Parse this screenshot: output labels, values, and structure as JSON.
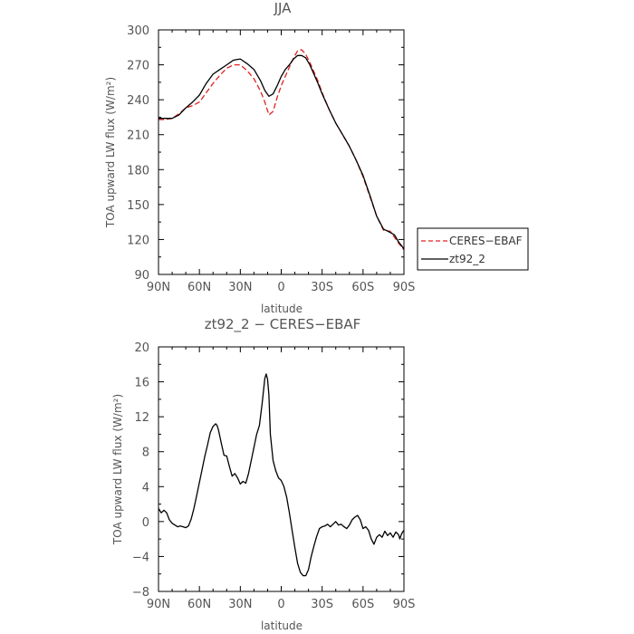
{
  "chart_data": [
    {
      "type": "line",
      "title": "JJA",
      "xlabel": "latitude",
      "ylabel": "TOA upward LW flux (W/m²)",
      "xlim": [
        -90,
        90
      ],
      "ylim": [
        90,
        300
      ],
      "x_ticks": [
        -90,
        -60,
        -30,
        0,
        30,
        60,
        90
      ],
      "x_tick_labels": [
        "90N",
        "60N",
        "30N",
        "0",
        "30S",
        "60S",
        "90S"
      ],
      "y_ticks": [
        90,
        120,
        150,
        180,
        210,
        240,
        270,
        300
      ],
      "y_tick_labels": [
        "90",
        "120",
        "150",
        "180",
        "210",
        "240",
        "270",
        "300"
      ],
      "legend": "right",
      "series": [
        {
          "name": "CERES−EBAF",
          "color": "#e02020",
          "dash": "dashed",
          "x": [
            -90,
            -85,
            -80,
            -75,
            -70,
            -65,
            -60,
            -55,
            -50,
            -45,
            -40,
            -35,
            -30,
            -25,
            -20,
            -15,
            -12,
            -9,
            -6,
            -3,
            0,
            3,
            6,
            9,
            12,
            15,
            18,
            21,
            24,
            27,
            30,
            35,
            40,
            45,
            50,
            55,
            60,
            65,
            70,
            75,
            80,
            83,
            86,
            90
          ],
          "y": [
            223,
            223,
            224,
            228,
            233,
            235,
            238,
            246,
            254,
            261,
            267,
            270,
            270,
            265,
            258,
            247,
            238,
            227,
            230,
            242,
            252,
            260,
            268,
            276,
            282,
            283,
            279,
            272,
            264,
            256,
            246,
            232,
            220,
            210,
            200,
            188,
            174,
            157,
            140,
            128,
            127,
            122,
            117,
            111
          ]
        },
        {
          "name": "zt92_2",
          "color": "#000000",
          "dash": "solid",
          "x": [
            -90,
            -85,
            -80,
            -75,
            -70,
            -65,
            -60,
            -55,
            -50,
            -45,
            -40,
            -35,
            -30,
            -25,
            -20,
            -15,
            -12,
            -9,
            -6,
            -3,
            0,
            3,
            6,
            9,
            12,
            15,
            18,
            21,
            24,
            27,
            30,
            35,
            40,
            45,
            50,
            55,
            60,
            65,
            70,
            75,
            80,
            83,
            86,
            90
          ],
          "y": [
            224,
            224,
            224,
            227,
            233,
            238,
            244,
            254,
            262,
            266,
            270,
            274,
            275,
            271,
            266,
            256,
            248,
            243,
            245,
            252,
            260,
            266,
            270,
            275,
            278,
            278,
            276,
            270,
            262,
            254,
            245,
            232,
            220,
            210,
            200,
            188,
            175,
            158,
            140,
            129,
            126,
            124,
            118,
            112
          ]
        }
      ]
    },
    {
      "type": "line",
      "title": "zt92_2 − CERES−EBAF",
      "xlabel": "latitude",
      "ylabel": "TOA upward LW flux (W/m²)",
      "xlim": [
        -90,
        90
      ],
      "ylim": [
        -8,
        20
      ],
      "x_ticks": [
        -90,
        -60,
        -30,
        0,
        30,
        60,
        90
      ],
      "x_tick_labels": [
        "90N",
        "60N",
        "30N",
        "0",
        "30S",
        "60S",
        "90S"
      ],
      "y_ticks": [
        -8,
        -4,
        0,
        4,
        8,
        12,
        16,
        20
      ],
      "y_tick_labels": [
        "−8",
        "−4",
        "0",
        "4",
        "8",
        "12",
        "16",
        "20"
      ],
      "series": [
        {
          "name": "",
          "color": "#000000",
          "dash": "solid",
          "x": [
            -90,
            -88,
            -86,
            -84,
            -82,
            -80,
            -78,
            -76,
            -74,
            -72,
            -70,
            -68,
            -66,
            -64,
            -62,
            -60,
            -58,
            -56,
            -54,
            -52,
            -50,
            -48,
            -47,
            -46,
            -44,
            -42,
            -40,
            -38,
            -36,
            -34,
            -32,
            -30,
            -28,
            -26,
            -24,
            -22,
            -20,
            -18,
            -16,
            -14,
            -12,
            -11,
            -10,
            -9,
            -8,
            -6,
            -4,
            -2,
            0,
            2,
            4,
            6,
            8,
            10,
            12,
            14,
            16,
            18,
            20,
            22,
            24,
            26,
            28,
            30,
            32,
            34,
            36,
            38,
            40,
            42,
            44,
            46,
            48,
            50,
            52,
            54,
            56,
            58,
            60,
            62,
            64,
            66,
            68,
            70,
            72,
            74,
            76,
            78,
            80,
            82,
            84,
            86,
            87,
            88,
            89,
            90
          ],
          "y": [
            1.5,
            1.0,
            1.3,
            1.0,
            0.2,
            -0.2,
            -0.4,
            -0.6,
            -0.5,
            -0.6,
            -0.7,
            -0.5,
            0.3,
            1.5,
            3.0,
            4.5,
            6.0,
            7.5,
            8.8,
            10.2,
            10.9,
            11.2,
            11.0,
            10.5,
            9.0,
            7.6,
            7.5,
            6.3,
            5.2,
            5.5,
            5.0,
            4.3,
            4.6,
            4.4,
            5.5,
            7.0,
            8.5,
            10.0,
            11.0,
            13.5,
            16.4,
            16.9,
            16.3,
            14.5,
            10.0,
            7.0,
            5.8,
            5.0,
            4.7,
            4.0,
            2.8,
            1.0,
            -1.0,
            -3.0,
            -4.8,
            -5.8,
            -6.2,
            -6.2,
            -5.5,
            -4.0,
            -2.8,
            -1.7,
            -0.8,
            -0.6,
            -0.5,
            -0.3,
            -0.6,
            -0.3,
            0.0,
            -0.4,
            -0.3,
            -0.6,
            -0.8,
            -0.4,
            0.2,
            0.5,
            0.7,
            0.2,
            -0.8,
            -0.6,
            -1.0,
            -2.0,
            -2.6,
            -1.8,
            -1.5,
            -1.8,
            -1.1,
            -1.6,
            -1.3,
            -1.8,
            -1.2,
            -1.5,
            -2.0,
            -1.5,
            -1.2,
            -1.0
          ]
        }
      ]
    }
  ]
}
